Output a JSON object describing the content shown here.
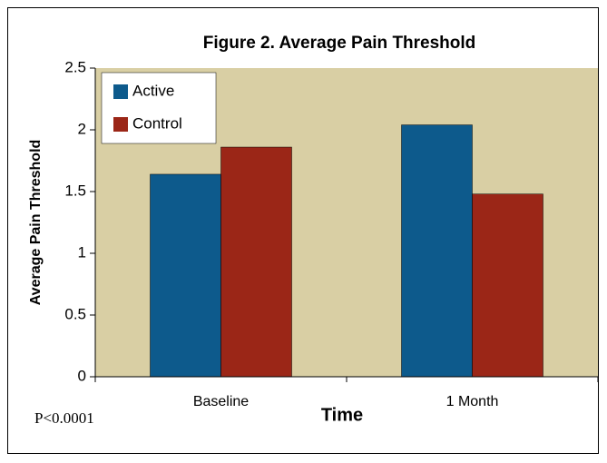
{
  "chart_data": {
    "type": "bar",
    "title": "Figure 2. Average Pain Threshold",
    "x_label": "Time",
    "y_label": "Average Pain Threshold",
    "annotation": "P<0.0001",
    "categories": [
      "Baseline",
      "1 Month"
    ],
    "series": [
      {
        "name": "Active",
        "color": "#0d5a8c",
        "values": [
          1.64,
          2.04
        ]
      },
      {
        "name": "Control",
        "color": "#9b2617",
        "values": [
          1.86,
          1.48
        ]
      }
    ],
    "ylim": [
      0,
      2.5
    ],
    "yticks": [
      0,
      0.5,
      1,
      1.5,
      2,
      2.5
    ],
    "legend": "upper left",
    "background": "#d9cfa4"
  }
}
